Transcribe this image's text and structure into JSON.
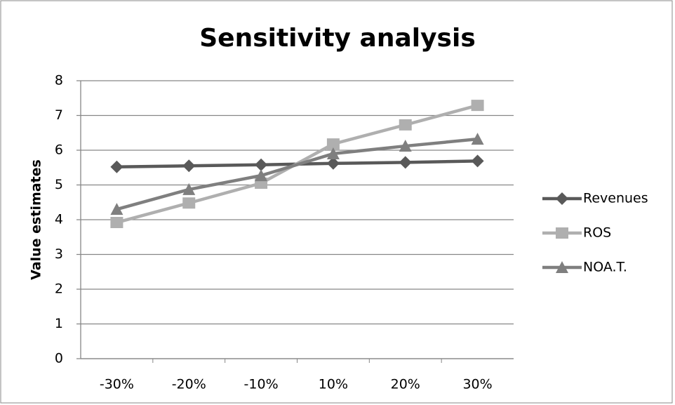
{
  "chart_data": {
    "type": "line",
    "title": "Sensitivity analysis",
    "y_label": "Value estimates",
    "categories": [
      "-30%",
      "-20%",
      "-10%",
      "10%",
      "20%",
      "30%"
    ],
    "series": [
      {
        "name": "Revenues",
        "color": "#595959",
        "marker": "diamond",
        "values": [
          5.52,
          5.55,
          5.58,
          5.62,
          5.65,
          5.69
        ]
      },
      {
        "name": "ROS",
        "color": "#afafaf",
        "marker": "square",
        "values": [
          3.92,
          4.48,
          5.05,
          6.18,
          6.73,
          7.29
        ]
      },
      {
        "name": "NOA.T.",
        "color": "#7f7f7f",
        "marker": "triangle",
        "values": [
          4.3,
          4.87,
          5.27,
          5.9,
          6.12,
          6.32
        ]
      }
    ],
    "ylim": [
      0,
      8
    ],
    "yticks": [
      0,
      1,
      2,
      3,
      4,
      5,
      6,
      7,
      8
    ],
    "grid": true,
    "legend": "right"
  }
}
